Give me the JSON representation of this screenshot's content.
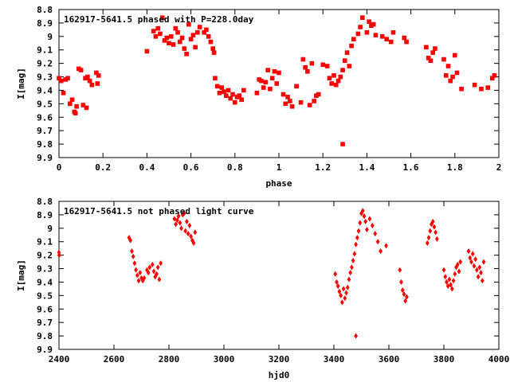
{
  "chart_data": [
    {
      "type": "scatter",
      "title": "162917-5641.5 phased with P=228.0day",
      "xlabel": "phase",
      "ylabel": "I[mag]",
      "xlim": [
        0,
        2
      ],
      "ylim": [
        9.9,
        8.8
      ],
      "y_inverted": true,
      "grid": false,
      "marker": "filled-square",
      "color": "#ff0000",
      "xticks": [
        "0",
        "0.2",
        "0.4",
        "0.6",
        "0.8",
        "1",
        "1.2",
        "1.4",
        "1.6",
        "1.8",
        "2"
      ],
      "yticks": [
        "8.8",
        "8.9",
        "9",
        "9.1",
        "9.2",
        "9.3",
        "9.4",
        "9.5",
        "9.6",
        "9.7",
        "9.8",
        "9.9"
      ],
      "series": [
        {
          "points": [
            [
              0.0,
              9.31
            ],
            [
              0.01,
              9.33
            ],
            [
              0.02,
              9.42
            ],
            [
              0.03,
              9.32
            ],
            [
              0.04,
              9.31
            ],
            [
              0.05,
              9.5
            ],
            [
              0.06,
              9.47
            ],
            [
              0.07,
              9.56
            ],
            [
              0.075,
              9.57
            ],
            [
              0.08,
              9.52
            ],
            [
              0.09,
              9.24
            ],
            [
              0.1,
              9.25
            ],
            [
              0.11,
              9.51
            ],
            [
              0.12,
              9.31
            ],
            [
              0.125,
              9.53
            ],
            [
              0.13,
              9.3
            ],
            [
              0.14,
              9.33
            ],
            [
              0.15,
              9.36
            ],
            [
              0.17,
              9.27
            ],
            [
              0.175,
              9.35
            ],
            [
              0.18,
              9.29
            ],
            [
              0.4,
              9.11
            ],
            [
              0.43,
              8.96
            ],
            [
              0.44,
              9.0
            ],
            [
              0.45,
              8.94
            ],
            [
              0.46,
              8.98
            ],
            [
              0.47,
              8.86
            ],
            [
              0.48,
              9.03
            ],
            [
              0.49,
              9.01
            ],
            [
              0.5,
              9.05
            ],
            [
              0.51,
              9.0
            ],
            [
              0.52,
              9.06
            ],
            [
              0.53,
              8.94
            ],
            [
              0.54,
              8.97
            ],
            [
              0.55,
              9.04
            ],
            [
              0.56,
              9.01
            ],
            [
              0.57,
              9.09
            ],
            [
              0.58,
              9.13
            ],
            [
              0.59,
              8.91
            ],
            [
              0.6,
              9.02
            ],
            [
              0.61,
              8.99
            ],
            [
              0.62,
              9.08
            ],
            [
              0.63,
              8.97
            ],
            [
              0.64,
              8.93
            ],
            [
              0.66,
              8.97
            ],
            [
              0.67,
              8.95
            ],
            [
              0.68,
              9.0
            ],
            [
              0.69,
              9.04
            ],
            [
              0.7,
              9.09
            ],
            [
              0.705,
              9.12
            ],
            [
              0.71,
              9.31
            ],
            [
              0.72,
              9.37
            ],
            [
              0.73,
              9.42
            ],
            [
              0.74,
              9.38
            ],
            [
              0.75,
              9.41
            ],
            [
              0.76,
              9.44
            ],
            [
              0.77,
              9.4
            ],
            [
              0.78,
              9.46
            ],
            [
              0.79,
              9.43
            ],
            [
              0.8,
              9.49
            ],
            [
              0.81,
              9.45
            ],
            [
              0.82,
              9.44
            ],
            [
              0.83,
              9.47
            ],
            [
              0.84,
              9.4
            ],
            [
              0.9,
              9.42
            ],
            [
              0.91,
              9.32
            ],
            [
              0.92,
              9.33
            ],
            [
              0.93,
              9.38
            ],
            [
              0.94,
              9.34
            ],
            [
              0.95,
              9.25
            ],
            [
              0.96,
              9.39
            ],
            [
              0.97,
              9.31
            ],
            [
              0.98,
              9.26
            ],
            [
              0.99,
              9.35
            ],
            [
              1.0,
              9.27
            ],
            [
              1.02,
              9.43
            ],
            [
              1.03,
              9.5
            ],
            [
              1.04,
              9.45
            ],
            [
              1.05,
              9.48
            ],
            [
              1.06,
              9.52
            ],
            [
              1.08,
              9.37
            ],
            [
              1.1,
              9.49
            ],
            [
              1.11,
              9.17
            ],
            [
              1.12,
              9.23
            ],
            [
              1.13,
              9.26
            ],
            [
              1.14,
              9.51
            ],
            [
              1.15,
              9.2
            ],
            [
              1.16,
              9.48
            ],
            [
              1.17,
              9.44
            ],
            [
              1.18,
              9.43
            ],
            [
              1.2,
              9.21
            ],
            [
              1.22,
              9.22
            ],
            [
              1.23,
              9.31
            ],
            [
              1.24,
              9.35
            ],
            [
              1.25,
              9.29
            ],
            [
              1.26,
              9.36
            ],
            [
              1.27,
              9.33
            ],
            [
              1.28,
              9.3
            ],
            [
              1.29,
              9.25
            ],
            [
              1.3,
              9.18
            ],
            [
              1.31,
              9.12
            ],
            [
              1.32,
              9.22
            ],
            [
              1.33,
              9.07
            ],
            [
              1.34,
              9.02
            ],
            [
              1.36,
              8.98
            ],
            [
              1.37,
              8.93
            ],
            [
              1.38,
              8.86
            ],
            [
              1.4,
              8.97
            ],
            [
              1.41,
              8.89
            ],
            [
              1.42,
              8.92
            ],
            [
              1.43,
              8.91
            ],
            [
              1.44,
              8.99
            ],
            [
              1.47,
              9.0
            ],
            [
              1.49,
              9.02
            ],
            [
              1.51,
              9.04
            ],
            [
              1.29,
              9.8
            ],
            [
              1.52,
              8.97
            ],
            [
              1.57,
              9.01
            ],
            [
              1.58,
              9.04
            ],
            [
              1.67,
              9.08
            ],
            [
              1.68,
              9.16
            ],
            [
              1.69,
              9.18
            ],
            [
              1.7,
              9.12
            ],
            [
              1.71,
              9.09
            ],
            [
              1.75,
              9.17
            ],
            [
              1.76,
              9.29
            ],
            [
              1.77,
              9.22
            ],
            [
              1.78,
              9.33
            ],
            [
              1.79,
              9.3
            ],
            [
              1.8,
              9.14
            ],
            [
              1.81,
              9.27
            ],
            [
              1.83,
              9.39
            ],
            [
              1.89,
              9.36
            ],
            [
              1.92,
              9.39
            ],
            [
              1.95,
              9.38
            ],
            [
              1.97,
              9.31
            ],
            [
              1.98,
              9.29
            ]
          ]
        }
      ]
    },
    {
      "type": "scatter",
      "title": "162917-5641.5 not phased light curve",
      "xlabel": "hjd0",
      "ylabel": "I[mag]",
      "xlim": [
        2400,
        4000
      ],
      "ylim": [
        9.9,
        8.8
      ],
      "y_inverted": true,
      "grid": false,
      "marker": "filled-diamond",
      "color": "#ff0000",
      "xticks": [
        "2400",
        "2600",
        "2800",
        "3000",
        "3200",
        "3400",
        "3600",
        "3800",
        "4000"
      ],
      "yticks": [
        "8.8",
        "8.9",
        "9",
        "9.1",
        "9.2",
        "9.3",
        "9.4",
        "9.5",
        "9.6",
        "9.7",
        "9.8",
        "9.9"
      ],
      "series": [
        {
          "points": [
            [
              2400,
              9.18
            ],
            [
              2401,
              9.2
            ],
            [
              2655,
              9.07
            ],
            [
              2660,
              9.09
            ],
            [
              2665,
              9.17
            ],
            [
              2670,
              9.21
            ],
            [
              2675,
              9.26
            ],
            [
              2680,
              9.31
            ],
            [
              2685,
              9.35
            ],
            [
              2690,
              9.39
            ],
            [
              2695,
              9.33
            ],
            [
              2700,
              9.37
            ],
            [
              2705,
              9.39
            ],
            [
              2710,
              9.37
            ],
            [
              2720,
              9.31
            ],
            [
              2725,
              9.33
            ],
            [
              2730,
              9.29
            ],
            [
              2740,
              9.27
            ],
            [
              2745,
              9.32
            ],
            [
              2750,
              9.36
            ],
            [
              2755,
              9.34
            ],
            [
              2760,
              9.29
            ],
            [
              2765,
              9.38
            ],
            [
              2770,
              9.26
            ],
            [
              2820,
              8.93
            ],
            [
              2825,
              8.97
            ],
            [
              2830,
              8.94
            ],
            [
              2835,
              8.91
            ],
            [
              2840,
              8.96
            ],
            [
              2845,
              9.0
            ],
            [
              2850,
              8.9
            ],
            [
              2855,
              8.89
            ],
            [
              2860,
              9.02
            ],
            [
              2865,
              8.95
            ],
            [
              2870,
              9.04
            ],
            [
              2875,
              8.98
            ],
            [
              2880,
              9.06
            ],
            [
              2885,
              9.09
            ],
            [
              2890,
              9.11
            ],
            [
              2895,
              9.03
            ],
            [
              3405,
              9.34
            ],
            [
              3410,
              9.4
            ],
            [
              3415,
              9.43
            ],
            [
              3420,
              9.47
            ],
            [
              3425,
              9.5
            ],
            [
              3430,
              9.55
            ],
            [
              3435,
              9.45
            ],
            [
              3440,
              9.52
            ],
            [
              3445,
              9.48
            ],
            [
              3450,
              9.44
            ],
            [
              3455,
              9.38
            ],
            [
              3460,
              9.33
            ],
            [
              3465,
              9.29
            ],
            [
              3470,
              9.24
            ],
            [
              3475,
              9.19
            ],
            [
              3480,
              9.12
            ],
            [
              3485,
              9.07
            ],
            [
              3490,
              9.02
            ],
            [
              3495,
              8.96
            ],
            [
              3500,
              8.89
            ],
            [
              3505,
              8.87
            ],
            [
              3510,
              8.91
            ],
            [
              3515,
              8.95
            ],
            [
              3520,
              9.01
            ],
            [
              3530,
              8.93
            ],
            [
              3540,
              8.98
            ],
            [
              3550,
              9.04
            ],
            [
              3560,
              9.1
            ],
            [
              3570,
              9.17
            ],
            [
              3590,
              9.13
            ],
            [
              3480,
              9.8
            ],
            [
              3640,
              9.31
            ],
            [
              3645,
              9.4
            ],
            [
              3650,
              9.46
            ],
            [
              3655,
              9.49
            ],
            [
              3660,
              9.54
            ],
            [
              3665,
              9.51
            ],
            [
              3740,
              9.11
            ],
            [
              3745,
              9.07
            ],
            [
              3750,
              9.02
            ],
            [
              3755,
              8.97
            ],
            [
              3760,
              8.95
            ],
            [
              3765,
              8.99
            ],
            [
              3770,
              9.03
            ],
            [
              3775,
              9.08
            ],
            [
              3800,
              9.31
            ],
            [
              3805,
              9.36
            ],
            [
              3810,
              9.4
            ],
            [
              3815,
              9.43
            ],
            [
              3820,
              9.38
            ],
            [
              3825,
              9.42
            ],
            [
              3830,
              9.45
            ],
            [
              3835,
              9.39
            ],
            [
              3840,
              9.34
            ],
            [
              3845,
              9.29
            ],
            [
              3850,
              9.27
            ],
            [
              3855,
              9.32
            ],
            [
              3860,
              9.25
            ],
            [
              3890,
              9.17
            ],
            [
              3895,
              9.22
            ],
            [
              3900,
              9.25
            ],
            [
              3905,
              9.19
            ],
            [
              3910,
              9.28
            ],
            [
              3915,
              9.23
            ],
            [
              3920,
              9.31
            ],
            [
              3925,
              9.36
            ],
            [
              3930,
              9.29
            ],
            [
              3935,
              9.33
            ],
            [
              3940,
              9.39
            ],
            [
              3945,
              9.25
            ]
          ]
        }
      ]
    }
  ]
}
